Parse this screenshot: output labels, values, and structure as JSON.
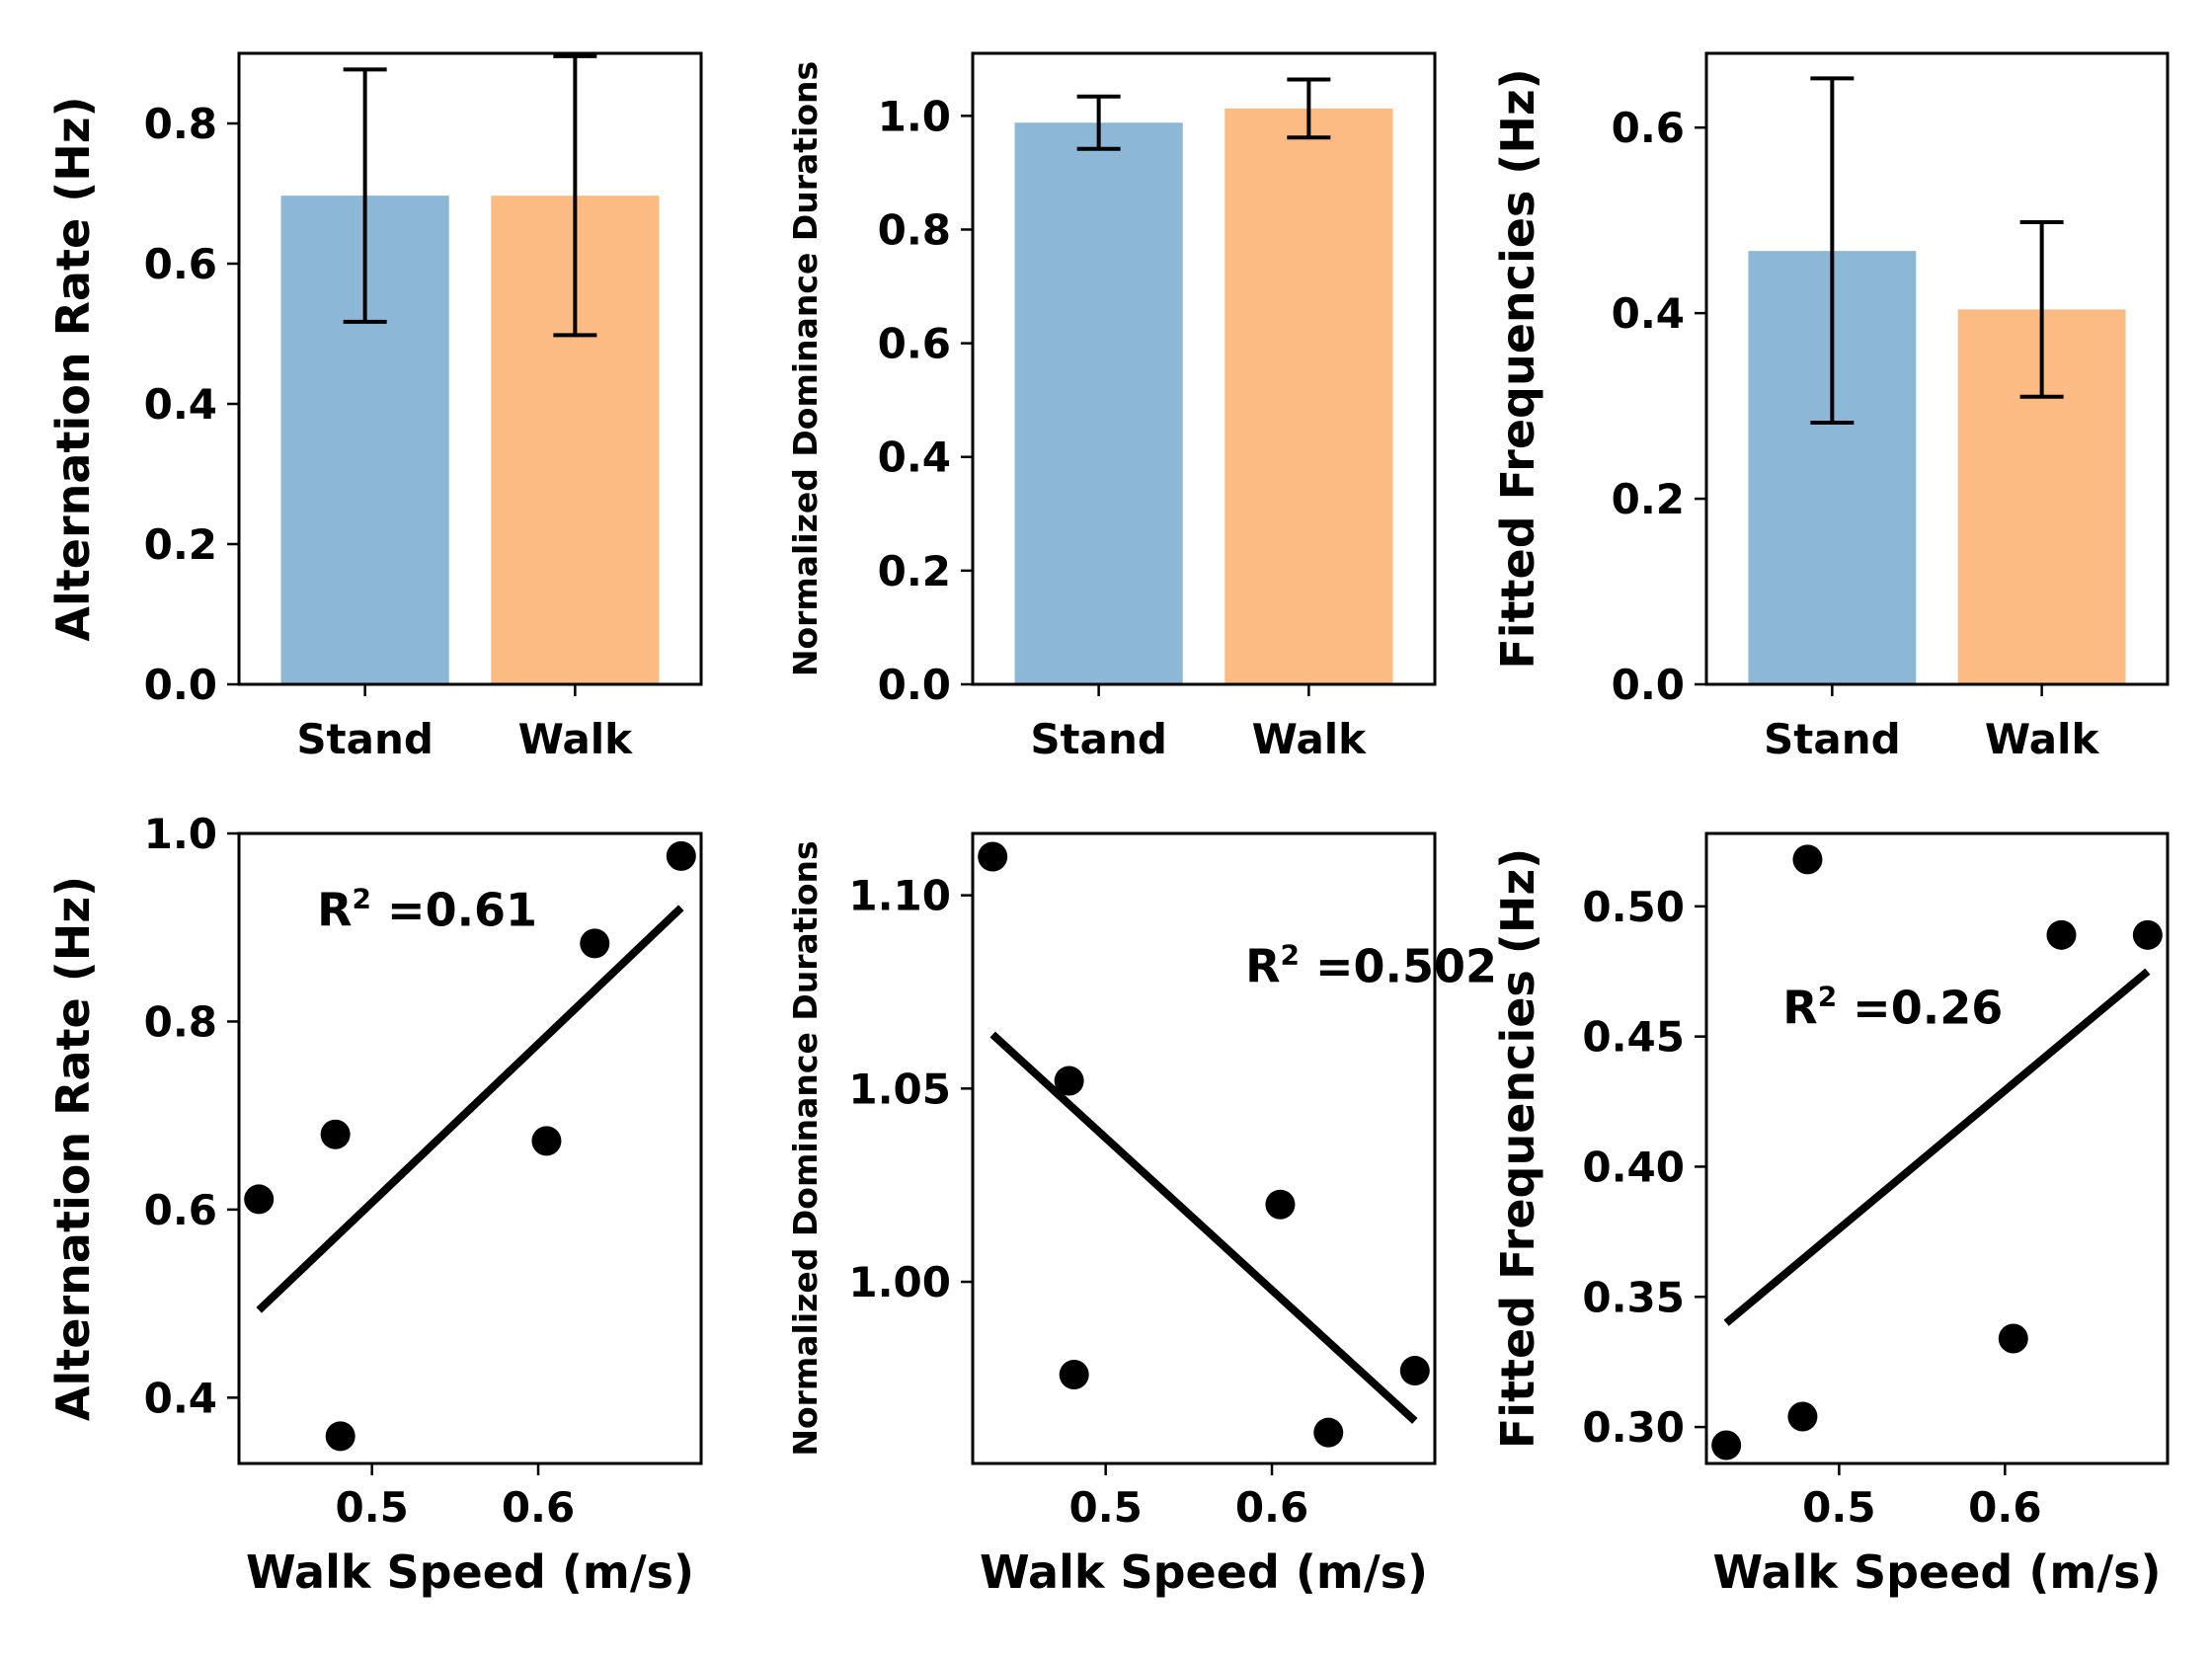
{
  "colors": {
    "stand": "#8db7d7",
    "walk": "#fdbb84",
    "marker": "#000000",
    "fit_line": "#000000",
    "error_bar": "#000000"
  },
  "chart_data": [
    {
      "type": "bar",
      "categories": [
        "Stand",
        "Walk"
      ],
      "values": [
        0.697,
        0.697
      ],
      "errors": [
        [
          0.517,
          0.877
        ],
        [
          0.498,
          0.896
        ]
      ],
      "xlabel": "",
      "ylabel": "Alternation Rate (Hz)",
      "ylim": [
        0,
        0.9
      ],
      "yticks": [
        0.0,
        0.2,
        0.4,
        0.6,
        0.8
      ],
      "ytick_labels": [
        "0.0",
        "0.2",
        "0.4",
        "0.6",
        "0.8"
      ],
      "bar_colors": [
        "stand",
        "walk"
      ],
      "grid": false
    },
    {
      "type": "bar",
      "categories": [
        "Stand",
        "Walk"
      ],
      "values": [
        0.988,
        1.013
      ],
      "errors": [
        [
          0.942,
          1.034
        ],
        [
          0.962,
          1.064
        ]
      ],
      "xlabel": "",
      "ylabel": "Normalized Dominance Durations",
      "ylim": [
        0,
        1.11
      ],
      "yticks": [
        0.0,
        0.2,
        0.4,
        0.6,
        0.8,
        1.0
      ],
      "ytick_labels": [
        "0.0",
        "0.2",
        "0.4",
        "0.6",
        "0.8",
        "1.0"
      ],
      "bar_colors": [
        "stand",
        "walk"
      ],
      "grid": false
    },
    {
      "type": "bar",
      "categories": [
        "Stand",
        "Walk"
      ],
      "values": [
        0.467,
        0.404
      ],
      "errors": [
        [
          0.282,
          0.653
        ],
        [
          0.31,
          0.498
        ]
      ],
      "xlabel": "",
      "ylabel": "Fitted Frequencies (Hz)",
      "ylim": [
        0,
        0.68
      ],
      "yticks": [
        0.0,
        0.2,
        0.4,
        0.6
      ],
      "ytick_labels": [
        "0.0",
        "0.2",
        "0.4",
        "0.6"
      ],
      "bar_colors": [
        "stand",
        "walk"
      ],
      "grid": false
    },
    {
      "type": "scatter",
      "points": [
        {
          "x": 0.432,
          "y": 0.611
        },
        {
          "x": 0.478,
          "y": 0.68
        },
        {
          "x": 0.481,
          "y": 0.359
        },
        {
          "x": 0.605,
          "y": 0.673
        },
        {
          "x": 0.634,
          "y": 0.883
        },
        {
          "x": 0.686,
          "y": 0.976
        }
      ],
      "fit": {
        "x": [
          0.432,
          0.686
        ],
        "y": [
          0.493,
          0.921
        ]
      },
      "annotation": {
        "base": "R",
        "sup": "2",
        "rest": " =0.61",
        "x": 0.467,
        "y": 0.902
      },
      "xlabel": "Walk Speed (m/s)",
      "ylabel": "Alternation Rate (Hz)",
      "xlim": [
        0.42,
        0.698
      ],
      "ylim": [
        0.33,
        1.0
      ],
      "xticks": [
        0.5,
        0.6
      ],
      "xtick_labels": [
        "0.5",
        "0.6"
      ],
      "yticks": [
        0.4,
        0.6,
        0.8,
        1.0
      ],
      "ytick_labels": [
        "0.4",
        "0.6",
        "0.8",
        "1.0"
      ],
      "grid": false
    },
    {
      "type": "scatter",
      "points": [
        {
          "x": 0.432,
          "y": 1.11
        },
        {
          "x": 0.478,
          "y": 1.052
        },
        {
          "x": 0.481,
          "y": 0.976
        },
        {
          "x": 0.605,
          "y": 1.02
        },
        {
          "x": 0.634,
          "y": 0.961
        },
        {
          "x": 0.686,
          "y": 0.977
        }
      ],
      "fit": {
        "x": [
          0.432,
          0.686
        ],
        "y": [
          1.064,
          0.964
        ]
      },
      "annotation": {
        "base": "R",
        "sup": "2",
        "rest": " =0.502",
        "x": 0.584,
        "y": 1.0775
      },
      "xlabel": "Walk Speed (m/s)",
      "ylabel": "Normalized Dominance Durations",
      "xlim": [
        0.42,
        0.698
      ],
      "ylim": [
        0.953,
        1.116
      ],
      "xticks": [
        0.5,
        0.6
      ],
      "xtick_labels": [
        "0.5",
        "0.6"
      ],
      "yticks": [
        1.0,
        1.05,
        1.1
      ],
      "ytick_labels": [
        "1.00",
        "1.05",
        "1.10"
      ],
      "grid": false
    },
    {
      "type": "scatter",
      "points": [
        {
          "x": 0.432,
          "y": 0.293
        },
        {
          "x": 0.478,
          "y": 0.304
        },
        {
          "x": 0.481,
          "y": 0.518
        },
        {
          "x": 0.605,
          "y": 0.334
        },
        {
          "x": 0.634,
          "y": 0.489
        },
        {
          "x": 0.686,
          "y": 0.489
        }
      ],
      "fit": {
        "x": [
          0.432,
          0.686
        ],
        "y": [
          0.34,
          0.475
        ]
      },
      "annotation": {
        "base": "R",
        "sup": "2",
        "rest": " =0.26",
        "x": 0.466,
        "y": 0.455
      },
      "xlabel": "Walk Speed (m/s)",
      "ylabel": "Fitted Frequencies (Hz)",
      "xlim": [
        0.42,
        0.698
      ],
      "ylim": [
        0.286,
        0.528
      ],
      "xticks": [
        0.5,
        0.6
      ],
      "xtick_labels": [
        "0.5",
        "0.6"
      ],
      "yticks": [
        0.3,
        0.35,
        0.4,
        0.45,
        0.5
      ],
      "ytick_labels": [
        "0.30",
        "0.35",
        "0.40",
        "0.45",
        "0.50"
      ],
      "grid": false
    }
  ]
}
